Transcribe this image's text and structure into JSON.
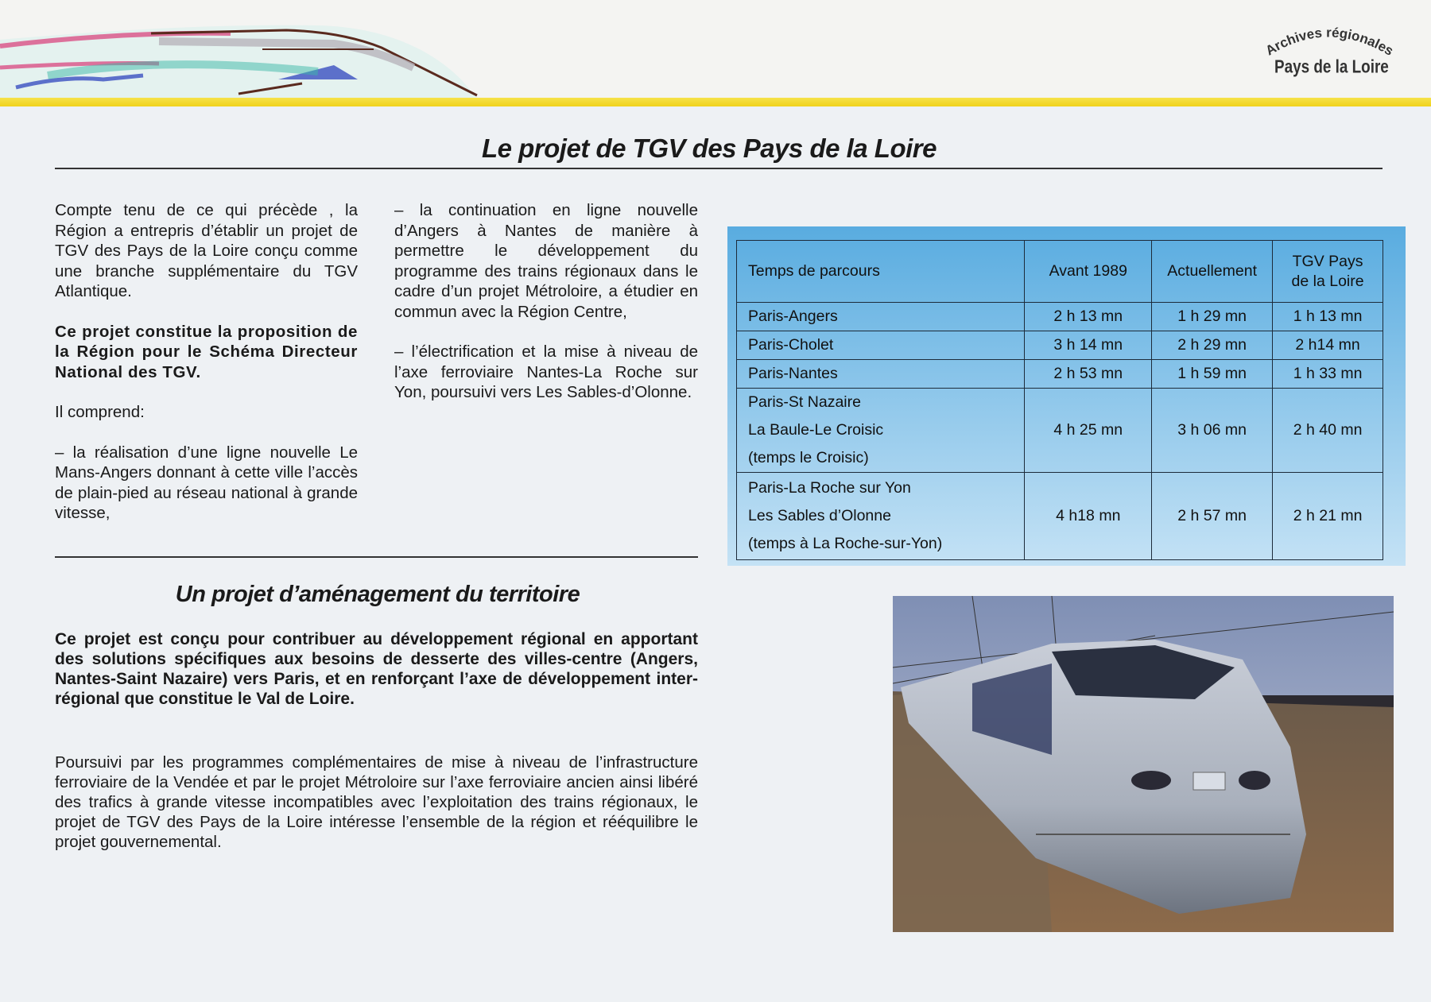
{
  "header": {
    "logo_arc": "Archives régionales",
    "logo_main": "Pays de la Loire",
    "accent_color": "#f0d21c"
  },
  "title": "Le projet de TGV des Pays de la Loire",
  "left_column": {
    "p1": "Compte tenu de ce qui précède , la Région a entrepris d’établir un projet de TGV des Pays de la Loire conçu comme une branche supplémentaire du TGV Atlantique.",
    "p2": "Ce projet constitue la proposition de la Région pour le Schéma Directeur National des TGV.",
    "p3": "Il comprend:",
    "p4": "– la réalisation d’une ligne nouvelle Le Mans-Angers donnant à cette ville l’accès de plain-pied au réseau national à grande vitesse,"
  },
  "middle_column": {
    "p1": "– la continuation en ligne nouvelle d’Angers à Nantes de manière à permettre le développement du programme des trains régionaux dans le cadre d’un projet Métroloire, a étudier en commun avec la Région Centre,",
    "p2": "– l’électrification et la mise à niveau de l’axe ferroviaire Nantes-La Roche sur Yon, poursuivi vers Les Sables-d’Olonne."
  },
  "section2": {
    "heading": "Un projet d’aménagement du territoire",
    "bold_paragraph": "Ce projet est conçu pour contribuer au développement régional en apportant des solutions spécifiques aux besoins de desserte des villes-centre (Angers, Nantes-Saint Nazaire) vers Paris, et en renforçant l’axe de développement inter-régional que constitue le Val de Loire.",
    "paragraph": "Poursuivi par les programmes complémentaires de mise à niveau de l’infrastructure ferroviaire de la Vendée et par le projet Métroloire sur l’axe ferroviaire ancien ainsi libéré des trafics à grande vitesse incompatibles avec l’exploitation des trains régionaux, le projet de TGV des Pays de la Loire intéresse l’ensemble de la région et rééquilibre le projet gouvernemental."
  },
  "table": {
    "headers": [
      "Temps de parcours",
      "Avant 1989",
      "Actuellement",
      "TGV Pays de la Loire"
    ],
    "rows": [
      {
        "route": [
          "Paris-Angers"
        ],
        "values": [
          "2 h 13 mn",
          "1 h 29 mn",
          "1 h 13 mn"
        ]
      },
      {
        "route": [
          "Paris-Cholet"
        ],
        "values": [
          "3 h 14 mn",
          "2 h 29 mn",
          "2 h14  mn"
        ]
      },
      {
        "route": [
          "Paris-Nantes"
        ],
        "values": [
          "2 h 53 mn",
          "1 h 59 mn",
          "1 h 33 mn"
        ]
      },
      {
        "route": [
          "Paris-St Nazaire",
          "La Baule-Le Croisic",
          "(temps le Croisic)"
        ],
        "values": [
          "4 h 25 mn",
          "3 h 06 mn",
          "2 h 40 mn"
        ]
      },
      {
        "route": [
          "Paris-La Roche  sur Yon",
          "Les Sables d’Olonne",
          "(temps à La Roche-sur-Yon)"
        ],
        "values": [
          "4 h18 mn",
          "2 h 57 mn",
          "2 h 21 mn"
        ]
      }
    ]
  }
}
